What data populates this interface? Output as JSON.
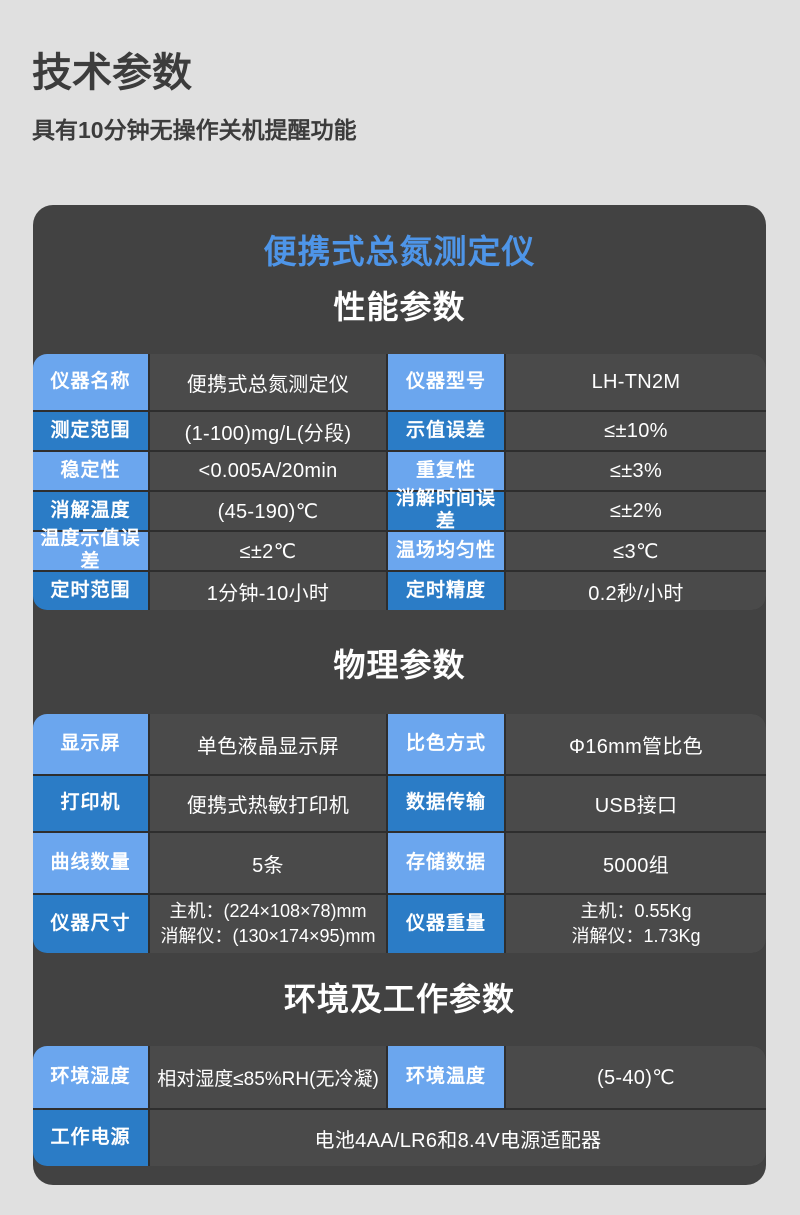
{
  "page": {
    "title": "技术参数",
    "subtitle": "具有10分钟无操作关机提醒功能"
  },
  "colors": {
    "page_background": "#e0e0e0",
    "card_background": "#424242",
    "value_cell_background": "#4a4a4a",
    "label_light_blue": "#6ba6ee",
    "label_dark_blue": "#2b7cc6",
    "product_title_blue": "#4e95e8"
  },
  "card": {
    "product_title": "便携式总氮测定仪",
    "sections": [
      {
        "heading": "性能参数",
        "rows": [
          {
            "label1": "仪器名称",
            "value1": "便携式总氮测定仪",
            "label2": "仪器型号",
            "value2": "LH-TN2M"
          },
          {
            "label1": "测定范围",
            "value1": "(1-100)mg/L(分段)",
            "label2": "示值误差",
            "value2": "≤±10%"
          },
          {
            "label1": "稳定性",
            "value1": "<0.005A/20min",
            "label2": "重复性",
            "value2": "≤±3%"
          },
          {
            "label1": "消解温度",
            "value1": "(45-190)℃",
            "label2": "消解时间误差",
            "value2": "≤±2%"
          },
          {
            "label1": "温度示值误差",
            "value1": "≤±2℃",
            "label2": "温场均匀性",
            "value2": "≤3℃"
          },
          {
            "label1": "定时范围",
            "value1": "1分钟-10小时",
            "label2": "定时精度",
            "value2": "0.2秒/小时"
          }
        ]
      },
      {
        "heading": "物理参数",
        "rows": [
          {
            "label1": "显示屏",
            "value1": "单色液晶显示屏",
            "label2": "比色方式",
            "value2": "Φ16mm管比色"
          },
          {
            "label1": "打印机",
            "value1": "便携式热敏打印机",
            "label2": "数据传输",
            "value2": "USB接口"
          },
          {
            "label1": "曲线数量",
            "value1": "5条",
            "label2": "存储数据",
            "value2": "5000组"
          },
          {
            "label1": "仪器尺寸",
            "value1_lines": [
              "主机：(224×108×78)mm",
              "消解仪：(130×174×95)mm"
            ],
            "label2": "仪器重量",
            "value2_lines": [
              "主机：0.55Kg",
              "消解仪：1.73Kg"
            ]
          }
        ]
      },
      {
        "heading": "环境及工作参数",
        "rows": [
          {
            "label1": "环境湿度",
            "value1": "相对湿度≤85%RH(无冷凝)",
            "label2": "环境温度",
            "value2": "(5-40)℃"
          },
          {
            "label1": "工作电源",
            "value_span": "电池4AA/LR6和8.4V电源适配器"
          }
        ]
      }
    ]
  }
}
